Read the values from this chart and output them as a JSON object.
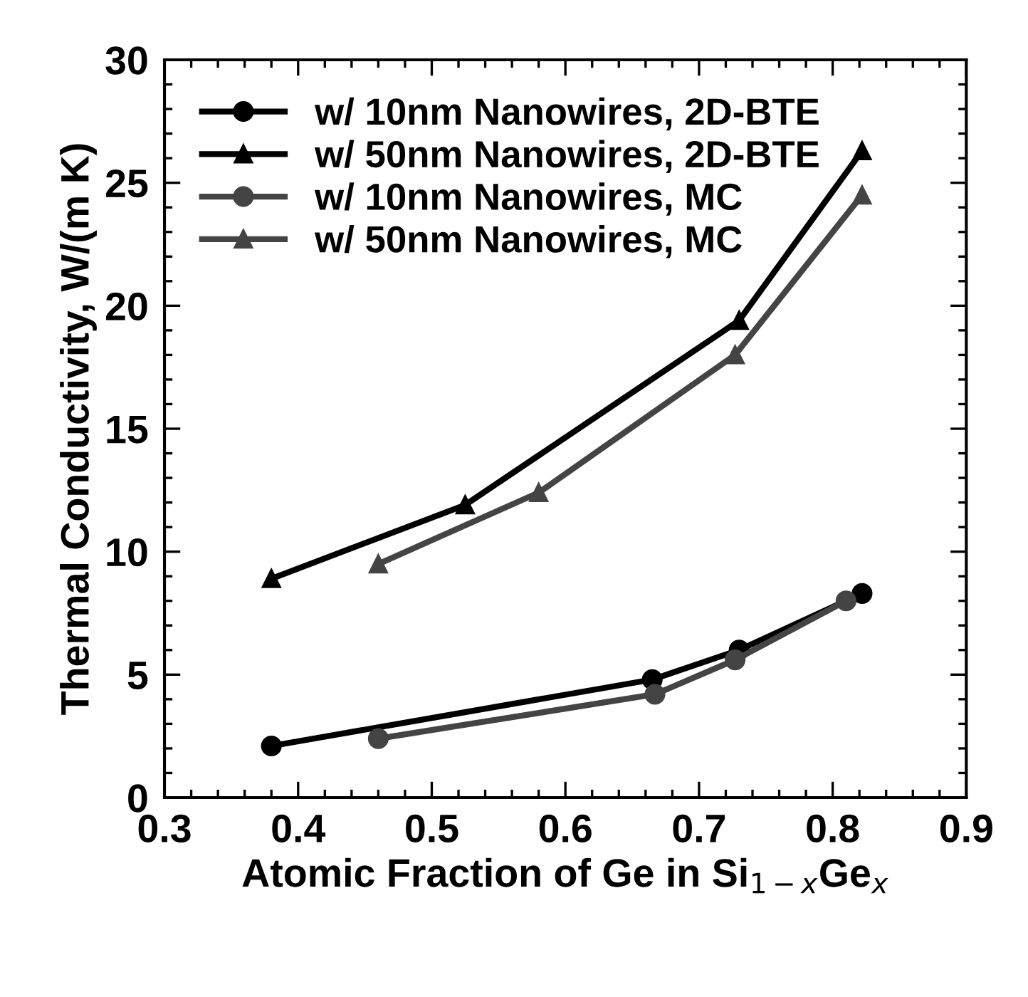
{
  "chart_data": {
    "type": "line",
    "xlabel": "Atomic Fraction of Ge in Si$_{1−x}$Ge$_{x}$",
    "ylabel": "Thermal Conductivity, W/(m K)",
    "xlim": [
      0.3,
      0.9
    ],
    "xticks": [
      0.3,
      0.4,
      0.5,
      0.6,
      0.7,
      0.8,
      0.9
    ],
    "ylim": [
      0,
      30
    ],
    "yticks": [
      0,
      5,
      10,
      15,
      20,
      25,
      30
    ],
    "grid": false,
    "legend": "top left",
    "series": [
      {
        "name": "w/ 10nm Nanowires, 2D-BTE",
        "color": "#000000",
        "marker": "circle",
        "x": [
          0.38,
          0.665,
          0.73,
          0.822
        ],
        "values": [
          2.1,
          4.8,
          6.0,
          8.3
        ]
      },
      {
        "name": "w/ 50nm Nanowires, 2D-BTE",
        "color": "#000000",
        "marker": "triangle",
        "x": [
          0.38,
          0.525,
          0.73,
          0.822
        ],
        "values": [
          8.9,
          11.9,
          19.4,
          26.3
        ]
      },
      {
        "name": "w/ 10nm Nanowires, MC",
        "color": "#444444",
        "marker": "circle",
        "x": [
          0.46,
          0.667,
          0.727,
          0.81
        ],
        "values": [
          2.4,
          4.2,
          5.6,
          8.0
        ]
      },
      {
        "name": "w/ 50nm Nanowires, MC",
        "color": "#444444",
        "marker": "triangle",
        "x": [
          0.46,
          0.58,
          0.727,
          0.822
        ],
        "values": [
          9.5,
          12.4,
          18.0,
          24.5
        ]
      }
    ]
  }
}
